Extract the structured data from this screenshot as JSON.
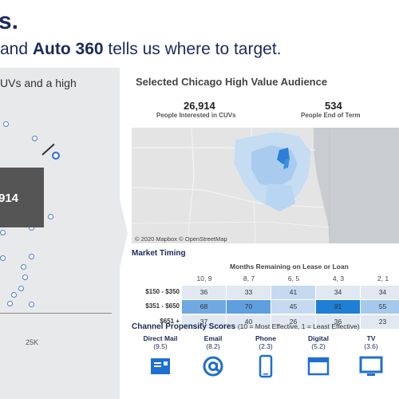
{
  "header": {
    "top_fragment": "s.",
    "headline_prefix": "and ",
    "headline_bold": "Auto 360",
    "headline_suffix": " tells us where to target."
  },
  "left_panel": {
    "partial_text": "UVs and a high",
    "callout_value": "914",
    "axis_tick": "25K"
  },
  "audience": {
    "title": "Selected Chicago High Value Audience",
    "stats": [
      {
        "value": "26,914",
        "label": "People Interested in CUVs"
      },
      {
        "value": "534",
        "label": "People End of Term"
      }
    ],
    "map_credit": "© 2020 Mapbox © OpenStreetMap"
  },
  "market_timing": {
    "title": "Market Timing",
    "months_header": "Months Remaining on Lease or Loan",
    "columns": [
      "10, 9",
      "8, 7",
      "6, 5",
      "4, 3",
      "2, 1"
    ],
    "rows": [
      {
        "label": "$150 - $350",
        "values": [
          "36",
          "33",
          "41",
          "34",
          "34"
        ],
        "colors": [
          "#e1e8f1",
          "#e1e8f1",
          "#c5daf1",
          "#e1e8f1",
          "#e1e8f1"
        ]
      },
      {
        "label": "$351 - $650",
        "values": [
          "68",
          "70",
          "45",
          "91",
          "55"
        ],
        "colors": [
          "#6fa9e2",
          "#5e9fe0",
          "#c5daf1",
          "#1f7fd4",
          "#a6c8ec"
        ]
      },
      {
        "label": "$651 +",
        "values": [
          "37",
          "40",
          "26",
          "36",
          "23"
        ],
        "colors": [
          "#e1e8f1",
          "#e1e8f1",
          "#e1e8f1",
          "#e1e8f1",
          "#e1e8f1"
        ]
      }
    ]
  },
  "channels": {
    "title": "Channel Propensity Scores",
    "note": "(10 = Most Effective, 1 = Least Effective)",
    "items": [
      {
        "label": "Direct Mail",
        "score": "(9.5)",
        "icon": "mail-icon"
      },
      {
        "label": "Email",
        "score": "(8.2)",
        "icon": "at-sign-icon"
      },
      {
        "label": "Phone",
        "score": "(2.3)",
        "icon": "phone-icon"
      },
      {
        "label": "Digital",
        "score": "(5.2)",
        "icon": "browser-window-icon"
      },
      {
        "label": "TV",
        "score": "(3.6)",
        "icon": "tv-icon"
      }
    ],
    "icon_color": "#1f6fd0"
  }
}
